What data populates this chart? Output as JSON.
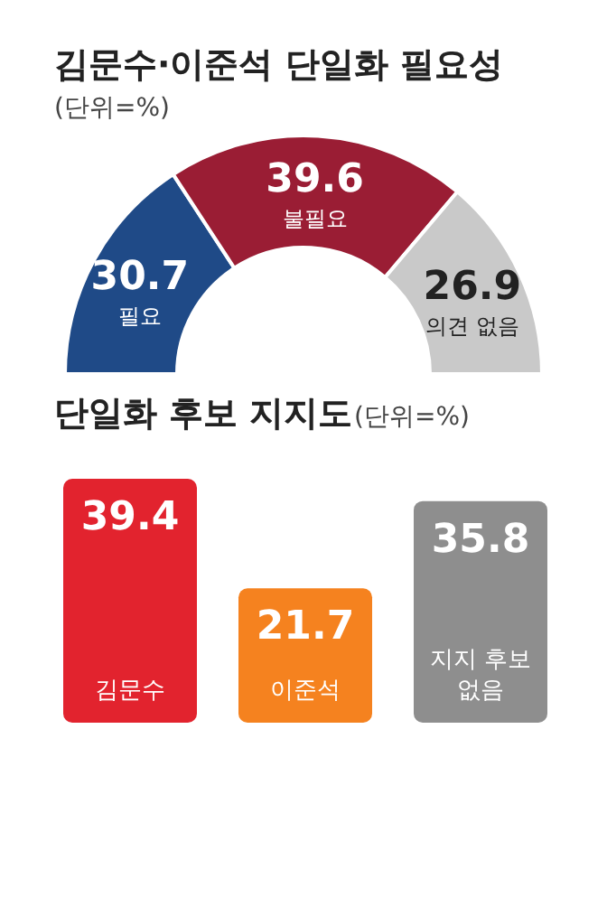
{
  "chart_data": [
    {
      "type": "donut",
      "title": "김문수·이준석 단일화 필요성",
      "subtitle": "(단위=%)",
      "categories": [
        "필요",
        "불필요",
        "의견 없음"
      ],
      "values": [
        30.7,
        39.6,
        26.9
      ],
      "colors": [
        "#1f4a87",
        "#9a1d34",
        "#c9c9c9"
      ],
      "data_labels": true
    },
    {
      "type": "bar",
      "title": "단일화 후보 지지도",
      "subtitle": "(단위=%)",
      "categories": [
        "김문수",
        "이준석",
        "지지 후보 없음"
      ],
      "values": [
        39.4,
        21.7,
        35.8
      ],
      "colors": [
        "#e2232e",
        "#f5821f",
        "#8e8e8e"
      ],
      "data_labels": true
    }
  ]
}
